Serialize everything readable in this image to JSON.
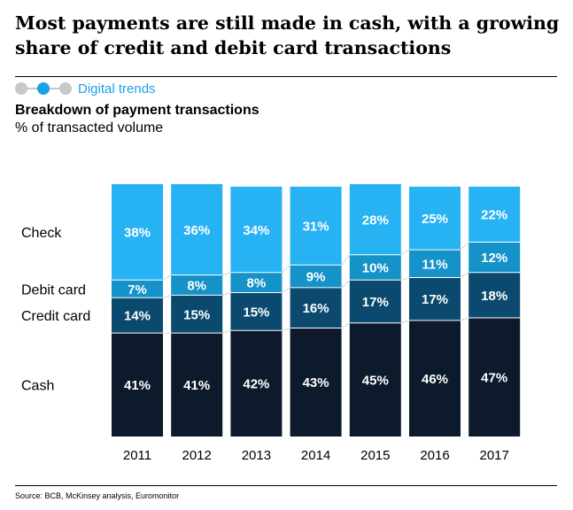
{
  "header": {
    "title": "Most payments are still made in cash, with a growing share of credit and debit card transactions",
    "nav_label": "Digital trends",
    "subtitle": "Breakdown of payment transactions",
    "units": "% of transacted volume"
  },
  "footer": {
    "source": "Source: BCB, McKinsey analysis, Euromonitor"
  },
  "colors": {
    "Cash": "#0c1a2b",
    "Credit card": "#0b4a6e",
    "Debit card": "#1592c8",
    "Check": "#27b2f4",
    "nav_accent": "#1aa3e6"
  },
  "chart_data": {
    "type": "bar",
    "stacked": true,
    "normalized_to_100": true,
    "categories": [
      "2011",
      "2012",
      "2013",
      "2014",
      "2015",
      "2016",
      "2017"
    ],
    "series": [
      {
        "name": "Cash",
        "values": [
          41,
          41,
          42,
          43,
          45,
          46,
          47
        ],
        "labels": [
          "41%",
          "41%",
          "42%",
          "43%",
          "45%",
          "46%",
          "47%"
        ]
      },
      {
        "name": "Credit card",
        "values": [
          14,
          15,
          15,
          16,
          17,
          17,
          18
        ],
        "labels": [
          "14%",
          "15%",
          "15%",
          "16%",
          "17%",
          "17%",
          "18%"
        ]
      },
      {
        "name": "Debit card",
        "values": [
          7,
          8,
          8,
          9,
          10,
          11,
          12
        ],
        "labels": [
          "7%",
          "8%",
          "8%",
          "9%",
          "10%",
          "11%",
          "12%"
        ]
      },
      {
        "name": "Check",
        "values": [
          38,
          36,
          34,
          31,
          28,
          25,
          22
        ],
        "labels": [
          "38%",
          "36%",
          "34%",
          "31%",
          "28%",
          "25%",
          "22%"
        ]
      }
    ],
    "xlabel": "",
    "ylabel": "",
    "ylim": [
      0,
      100
    ],
    "legend": "left, inline series labels",
    "connector_lines": true,
    "grid": false
  }
}
